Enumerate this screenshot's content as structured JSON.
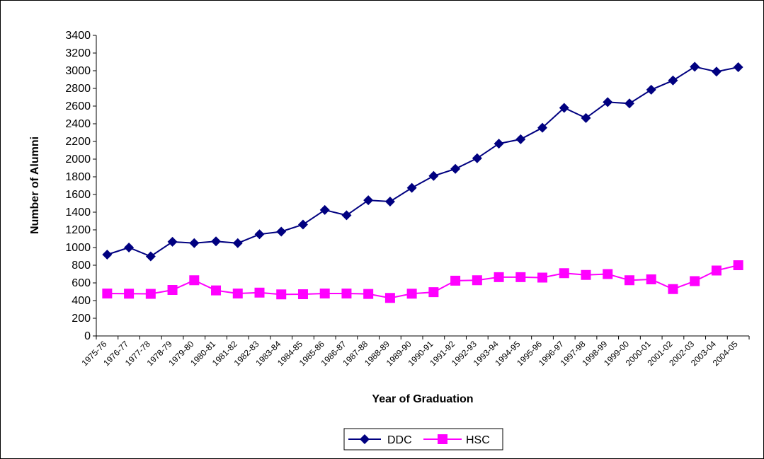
{
  "chart_data": {
    "type": "line",
    "title": "",
    "xlabel": "Year of Graduation",
    "ylabel": "Number of Alumni",
    "ylim": [
      0,
      3400
    ],
    "ytick_step": 200,
    "grid": false,
    "legend_position": "bottom",
    "categories": [
      "1975-76",
      "1976-77",
      "1977-78",
      "1978-79",
      "1979-80",
      "1980-81",
      "1981-82",
      "1982-83",
      "1983-84",
      "1984-85",
      "1985-86",
      "1986-87",
      "1987-88",
      "1988-89",
      "1989-90",
      "1990-91",
      "1991-92",
      "1992-93",
      "1993-94",
      "1994-95",
      "1995-96",
      "1996-97",
      "1997-98",
      "1998-99",
      "1999-00",
      "2000-01",
      "2001-02",
      "2002-03",
      "2003-04",
      "2004-05"
    ],
    "series": [
      {
        "name": "DDC",
        "color": "#000080",
        "marker": "diamond",
        "values": [
          920,
          1000,
          900,
          1065,
          1050,
          1070,
          1050,
          1150,
          1180,
          1260,
          1425,
          1365,
          1535,
          1520,
          1675,
          1810,
          1890,
          2010,
          2175,
          2225,
          2355,
          2580,
          2465,
          2645,
          2630,
          2785,
          2890,
          3045,
          2990,
          3040
        ]
      },
      {
        "name": "HSC",
        "color": "#ff00ff",
        "marker": "square",
        "values": [
          480,
          478,
          476,
          520,
          630,
          515,
          480,
          490,
          470,
          472,
          480,
          480,
          475,
          430,
          478,
          495,
          625,
          630,
          665,
          665,
          660,
          710,
          690,
          700,
          630,
          640,
          530,
          620,
          740,
          800
        ]
      }
    ]
  }
}
